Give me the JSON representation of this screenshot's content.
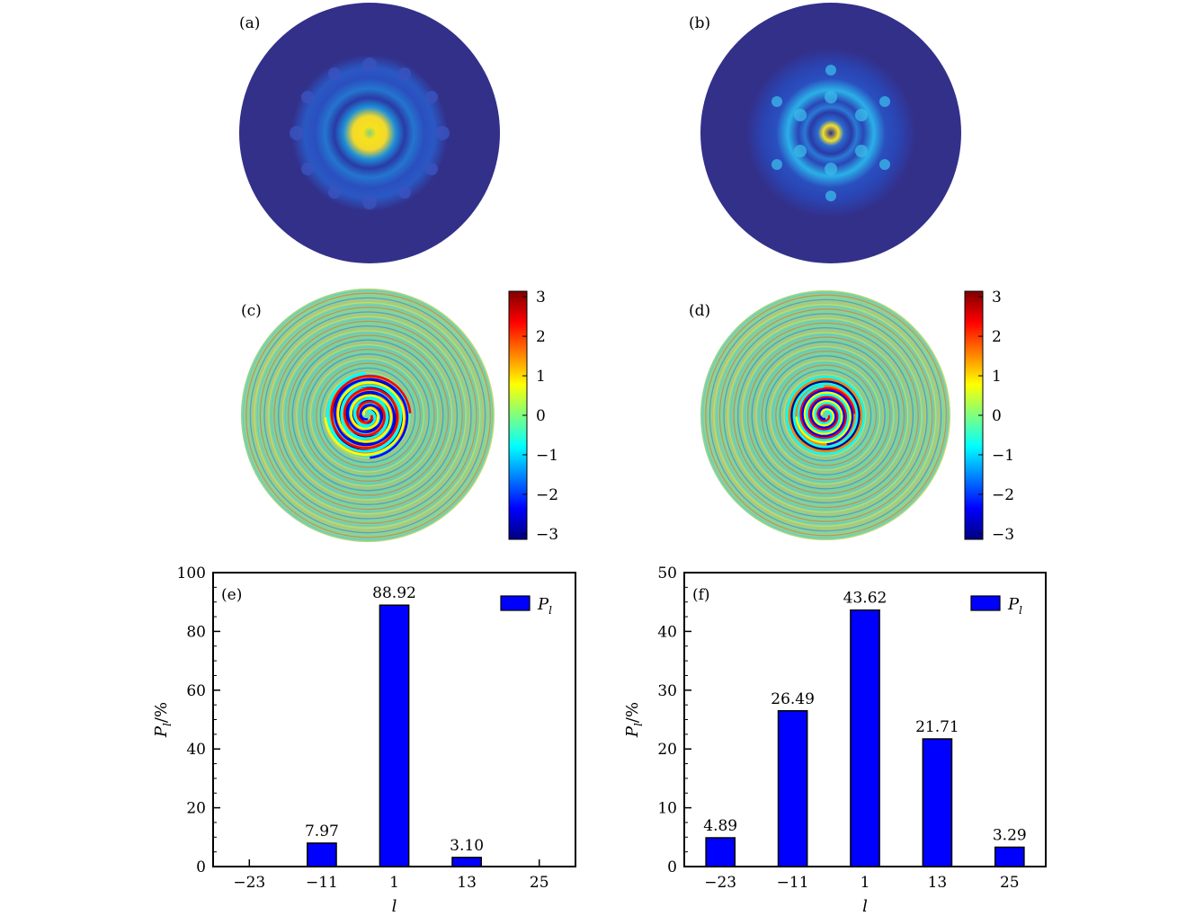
{
  "panels": {
    "a": {
      "label": "(a)"
    },
    "b": {
      "label": "(b)"
    },
    "c": {
      "label": "(c)"
    },
    "d": {
      "label": "(d)"
    }
  },
  "colorbar": {
    "ticks": [
      "3",
      "2",
      "1",
      "0",
      "−1",
      "−2",
      "−3"
    ],
    "ticks_values": [
      3,
      2,
      1,
      0,
      -1,
      -2,
      -3
    ],
    "range": [
      -3.14,
      3.14
    ],
    "colormap": [
      "#00007f",
      "#0000ff",
      "#007fff",
      "#00ffff",
      "#7fff7f",
      "#ffff00",
      "#ff7f00",
      "#ff0000",
      "#7f0000"
    ]
  },
  "colors": {
    "intensity_background": "#33308a",
    "bar_fill": "#0000ff",
    "bar_stroke": "#000000"
  },
  "chart_data": [
    {
      "type": "bar",
      "panel_label": "(e)",
      "categories": [
        "−23",
        "−11",
        "1",
        "13",
        "25"
      ],
      "values": [
        0,
        7.97,
        88.92,
        3.1,
        0
      ],
      "value_labels": [
        "",
        "7.97",
        "88.92",
        "3.10",
        ""
      ],
      "ylim": [
        0,
        100
      ],
      "yticks": [
        "0",
        "20",
        "40",
        "60",
        "80",
        "100"
      ],
      "yticks_values": [
        0,
        20,
        40,
        60,
        80,
        100
      ],
      "ylabel_main": "P",
      "ylabel_sub": "l",
      "ylabel_unit": "/%",
      "xlabel": "l",
      "legend": {
        "main": "P",
        "sub": "l",
        "position": "top-right"
      }
    },
    {
      "type": "bar",
      "panel_label": "(f)",
      "categories": [
        "−23",
        "−11",
        "1",
        "13",
        "25"
      ],
      "values": [
        4.89,
        26.49,
        43.62,
        21.71,
        3.29
      ],
      "value_labels": [
        "4.89",
        "26.49",
        "43.62",
        "21.71",
        "3.29"
      ],
      "ylim": [
        0,
        50
      ],
      "yticks": [
        "0",
        "10",
        "20",
        "30",
        "40",
        "50"
      ],
      "yticks_values": [
        0,
        10,
        20,
        30,
        40,
        50
      ],
      "ylabel_main": "P",
      "ylabel_sub": "l",
      "ylabel_unit": "/%",
      "xlabel": "l",
      "legend": {
        "main": "P",
        "sub": "l",
        "position": "top-right"
      }
    }
  ]
}
